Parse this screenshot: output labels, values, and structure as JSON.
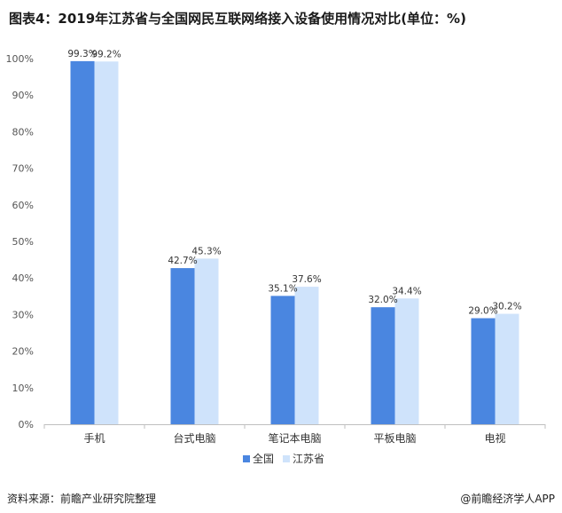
{
  "title": "图表4：2019年江苏省与全国网民互联网络接入设备使用情况对比(单位：%)",
  "source": "资料来源：前瞻产业研究院整理",
  "brand": "@前瞻经济学人APP",
  "colors": {
    "national": "#4a86e0",
    "jiangsu": "#cfe3fb",
    "axis": "#bfbfbf"
  },
  "chart_data": {
    "type": "bar",
    "categories": [
      "手机",
      "台式电脑",
      "笔记本电脑",
      "平板电脑",
      "电视"
    ],
    "series": [
      {
        "name": "全国",
        "values": [
          99.3,
          42.7,
          35.1,
          32.0,
          29.0
        ],
        "labels": [
          "99.3%",
          "42.7%",
          "35.1%",
          "32.0%",
          "29.0%"
        ]
      },
      {
        "name": "江苏省",
        "values": [
          99.2,
          45.3,
          37.6,
          34.4,
          30.2
        ],
        "labels": [
          "99.2%",
          "45.3%",
          "37.6%",
          "34.4%",
          "30.2%"
        ]
      }
    ],
    "yticks": [
      "0%",
      "10%",
      "20%",
      "30%",
      "40%",
      "50%",
      "60%",
      "70%",
      "80%",
      "90%",
      "100%"
    ],
    "ylim": [
      0,
      100
    ],
    "grid": false,
    "legend_position": "bottom-center"
  }
}
